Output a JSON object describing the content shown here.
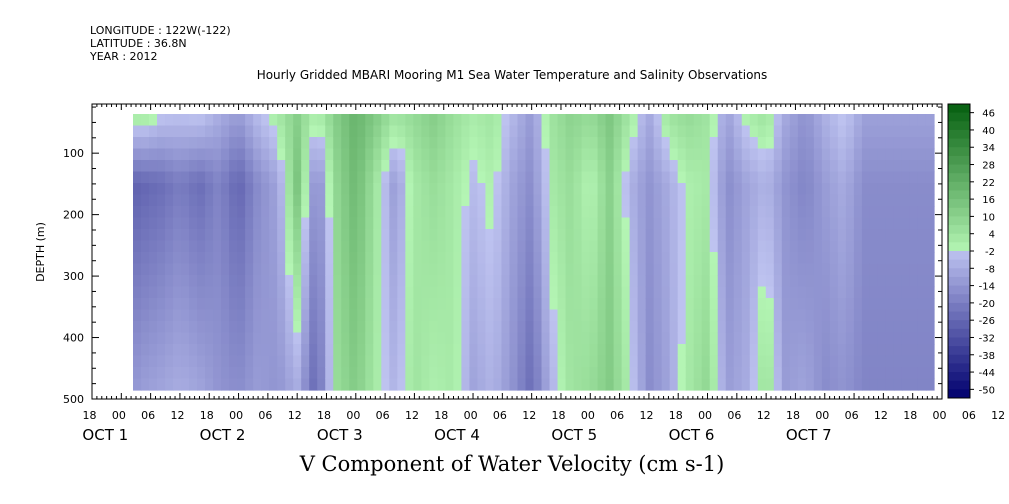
{
  "header": {
    "longitude": "LONGITUDE : 122W(-122)",
    "latitude": "LATITUDE : 36.8N",
    "year": "YEAR : 2012"
  },
  "chart_data": {
    "type": "heatmap",
    "title": "Hourly Gridded MBARI Mooring M1 Sea Water Temperature and Salinity Observations",
    "xlabel": "V Component of Water Velocity (cm s-1)",
    "ylabel": "DEPTH (m)",
    "y_axis": {
      "range": [
        500,
        20
      ],
      "ticks": [
        100,
        200,
        300,
        400,
        500
      ],
      "reversed": true
    },
    "x_axis": {
      "hour_tick_labels": [
        "18",
        "00",
        "06",
        "12",
        "18",
        "00",
        "06",
        "12",
        "18",
        "00",
        "06",
        "12",
        "18",
        "00",
        "06",
        "12",
        "18",
        "00",
        "06",
        "12",
        "18",
        "00",
        "06",
        "12",
        "18",
        "00",
        "06",
        "12",
        "18",
        "00",
        "06",
        "12",
        "18",
        "00"
      ],
      "day_labels": [
        "OCT  1",
        "OCT  2",
        "OCT  3",
        "OCT  4",
        "OCT  5",
        "OCT  6",
        "OCT  7"
      ],
      "range_hours_since_sep30_18": [
        0,
        174
      ]
    },
    "colorbar": {
      "labels": [
        "46",
        "40",
        "34",
        "28",
        "22",
        "16",
        "10",
        "4",
        "-2",
        "-8",
        "-14",
        "-20",
        "-26",
        "-32",
        "-38",
        "-44",
        "-50"
      ],
      "min": -50,
      "max": 50,
      "step": 3
    },
    "column_profiles": [
      {
        "hour": 2,
        "surface": 8,
        "mid": -18,
        "deep": -12
      },
      {
        "hour": 6,
        "surface": 6,
        "mid": -26,
        "deep": -14
      },
      {
        "hour": 10,
        "surface": 10,
        "mid": -24,
        "deep": -10
      },
      {
        "hour": 14,
        "surface": 4,
        "mid": -22,
        "deep": -8
      },
      {
        "hour": 18,
        "surface": 2,
        "mid": -18,
        "deep": -6
      },
      {
        "hour": 22,
        "surface": 4,
        "mid": -22,
        "deep": -8
      },
      {
        "hour": 26,
        "surface": -4,
        "mid": -16,
        "deep": -12
      },
      {
        "hour": 30,
        "surface": -8,
        "mid": -24,
        "deep": -14
      },
      {
        "hour": 34,
        "surface": 0,
        "mid": -14,
        "deep": -10
      },
      {
        "hour": 38,
        "surface": 6,
        "mid": -8,
        "deep": -12
      },
      {
        "hour": 42,
        "surface": 12,
        "mid": 16,
        "deep": -6
      },
      {
        "hour": 46,
        "surface": 4,
        "mid": -16,
        "deep": -24
      },
      {
        "hour": 50,
        "surface": 14,
        "mid": 10,
        "deep": 8
      },
      {
        "hour": 54,
        "surface": 22,
        "mid": 20,
        "deep": 14
      },
      {
        "hour": 58,
        "surface": 16,
        "mid": 6,
        "deep": 4
      },
      {
        "hour": 62,
        "surface": 8,
        "mid": -10,
        "deep": -4
      },
      {
        "hour": 66,
        "surface": 10,
        "mid": 4,
        "deep": 6
      },
      {
        "hour": 70,
        "surface": 14,
        "mid": 8,
        "deep": 2
      },
      {
        "hour": 74,
        "surface": 8,
        "mid": 4,
        "deep": 4
      },
      {
        "hour": 78,
        "surface": 4,
        "mid": -2,
        "deep": -8
      },
      {
        "hour": 82,
        "surface": 6,
        "mid": 2,
        "deep": -4
      },
      {
        "hour": 86,
        "surface": -2,
        "mid": -8,
        "deep": -12
      },
      {
        "hour": 90,
        "surface": -10,
        "mid": -14,
        "deep": -22
      },
      {
        "hour": 94,
        "surface": 6,
        "mid": 4,
        "deep": -4
      },
      {
        "hour": 98,
        "surface": 12,
        "mid": 8,
        "deep": 6
      },
      {
        "hour": 102,
        "surface": 10,
        "mid": 0,
        "deep": 8
      },
      {
        "hour": 106,
        "surface": 16,
        "mid": 12,
        "deep": 14
      },
      {
        "hour": 110,
        "surface": 6,
        "mid": -4,
        "deep": 2
      },
      {
        "hour": 114,
        "surface": -6,
        "mid": -12,
        "deep": -14
      },
      {
        "hour": 118,
        "surface": 8,
        "mid": -6,
        "deep": -8
      },
      {
        "hour": 122,
        "surface": 10,
        "mid": 2,
        "deep": 4
      },
      {
        "hour": 126,
        "surface": 6,
        "mid": 4,
        "deep": 10
      },
      {
        "hour": 130,
        "surface": -8,
        "mid": -14,
        "deep": -10
      },
      {
        "hour": 134,
        "surface": 4,
        "mid": -8,
        "deep": -6
      },
      {
        "hour": 138,
        "surface": 8,
        "mid": -4,
        "deep": 8
      },
      {
        "hour": 142,
        "surface": -6,
        "mid": -12,
        "deep": -10
      },
      {
        "hour": 146,
        "surface": -12,
        "mid": -16,
        "deep": -8
      },
      {
        "hour": 150,
        "surface": -4,
        "mid": -10,
        "deep": -14
      },
      {
        "hour": 154,
        "surface": 2,
        "mid": -6,
        "deep": -12
      },
      {
        "hour": 158,
        "surface": -8,
        "mid": -14,
        "deep": -16
      }
    ]
  },
  "caption": "V Component of Water Velocity (cm s-1)"
}
